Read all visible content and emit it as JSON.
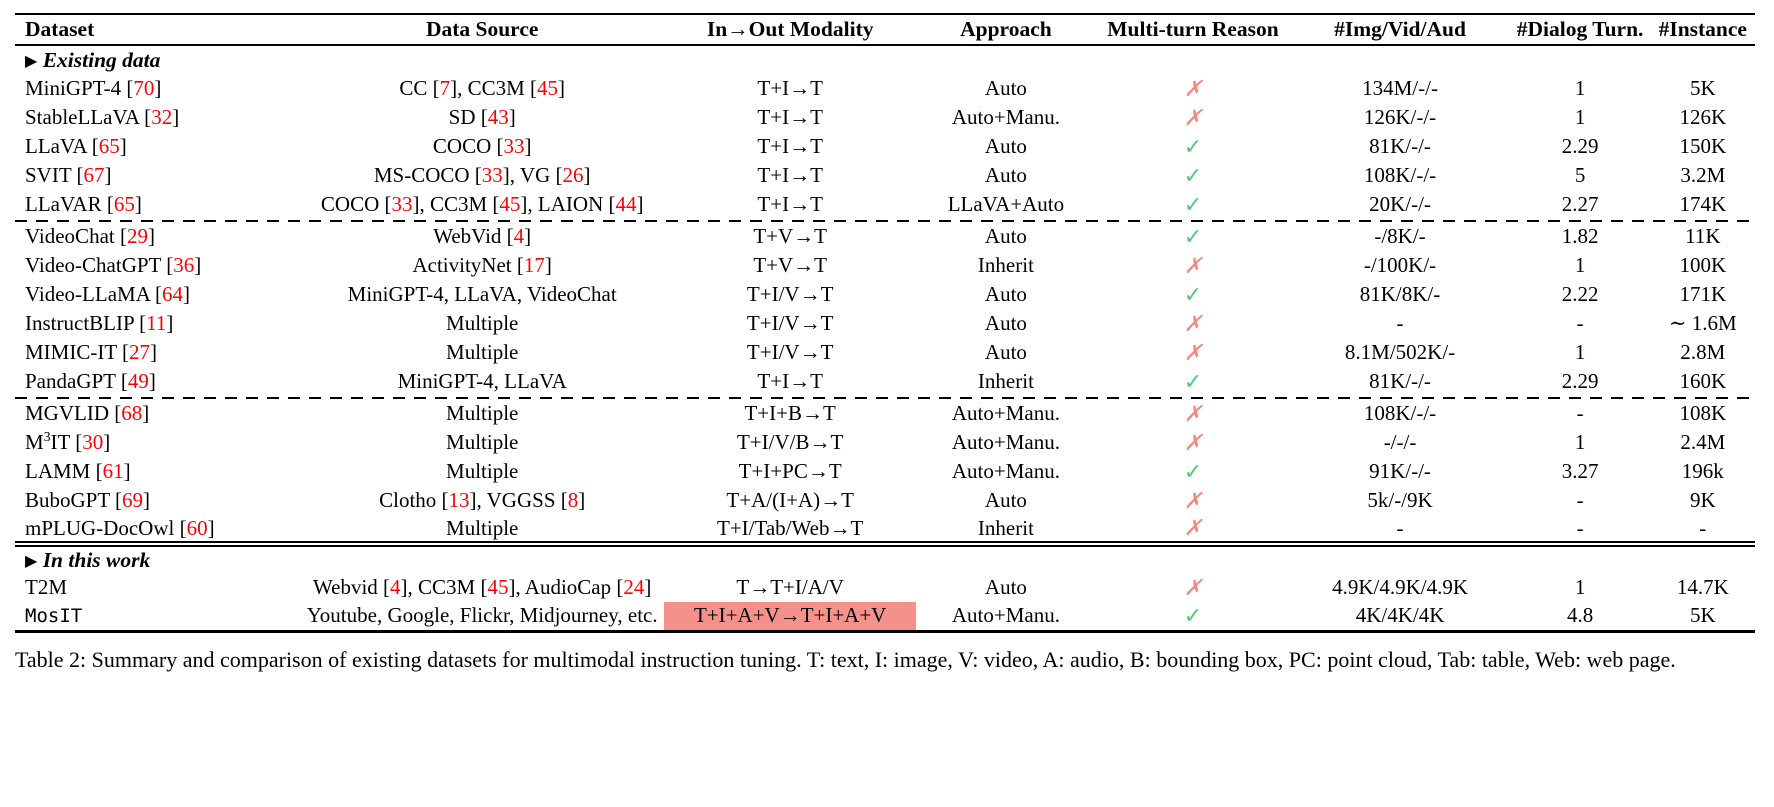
{
  "colors": {
    "cite": "#ff0000",
    "check": "#54c776",
    "cross": "#f48983",
    "hl": "#f4918a"
  },
  "icons": {
    "check": "✓",
    "cross": "✗",
    "section_marker": "▶"
  },
  "table": {
    "columns": [
      "Dataset",
      "Data Source",
      "In→Out Modality",
      "Approach",
      "Multi-turn Reason",
      "#Img/Vid/Aud",
      "#Dialog Turn.",
      "#Instance"
    ],
    "sections": [
      {
        "label": "Existing data",
        "rows": [
          {
            "dataset": "MiniGPT-4 [70]",
            "source": "CC [7], CC3M [45]",
            "modality": "T+I→T",
            "approach": "Auto",
            "multiturn": false,
            "img_vid_aud": "134M/-/-",
            "dialog_turn": "1",
            "instance": "5K"
          },
          {
            "dataset": "StableLLaVA [32]",
            "source": "SD [43]",
            "modality": "T+I→T",
            "approach": "Auto+Manu.",
            "multiturn": false,
            "img_vid_aud": "126K/-/-",
            "dialog_turn": "1",
            "instance": "126K"
          },
          {
            "dataset": "LLaVA [65]",
            "source": "COCO [33]",
            "modality": "T+I→T",
            "approach": "Auto",
            "multiturn": true,
            "img_vid_aud": "81K/-/-",
            "dialog_turn": "2.29",
            "instance": "150K"
          },
          {
            "dataset": "SVIT [67]",
            "source": "MS-COCO [33], VG [26]",
            "modality": "T+I→T",
            "approach": "Auto",
            "multiturn": true,
            "img_vid_aud": "108K/-/-",
            "dialog_turn": "5",
            "instance": "3.2M"
          },
          {
            "dataset": "LLaVAR [65]",
            "source": "COCO [33], CC3M [45], LAION [44]",
            "modality": "T+I→T",
            "approach": "LLaVA+Auto",
            "multiturn": true,
            "img_vid_aud": "20K/-/-",
            "dialog_turn": "2.27",
            "instance": "174K"
          },
          {
            "dash_before": true,
            "dataset": "VideoChat [29]",
            "source": "WebVid [4]",
            "modality": "T+V→T",
            "approach": "Auto",
            "multiturn": true,
            "img_vid_aud": "-/8K/-",
            "dialog_turn": "1.82",
            "instance": "11K"
          },
          {
            "dataset": "Video-ChatGPT [36]",
            "source": "ActivityNet [17]",
            "modality": "T+V→T",
            "approach": "Inherit",
            "multiturn": false,
            "img_vid_aud": "-/100K/-",
            "dialog_turn": "1",
            "instance": "100K"
          },
          {
            "dataset": "Video-LLaMA [64]",
            "source": "MiniGPT-4, LLaVA, VideoChat",
            "modality": "T+I/V→T",
            "approach": "Auto",
            "multiturn": true,
            "img_vid_aud": "81K/8K/-",
            "dialog_turn": "2.22",
            "instance": "171K"
          },
          {
            "dataset": "InstructBLIP [11]",
            "source": "Multiple",
            "modality": "T+I/V→T",
            "approach": "Auto",
            "multiturn": false,
            "img_vid_aud": "-",
            "dialog_turn": "-",
            "instance": "∼ 1.6M"
          },
          {
            "dataset": "MIMIC-IT [27]",
            "source": "Multiple",
            "modality": "T+I/V→T",
            "approach": "Auto",
            "multiturn": false,
            "img_vid_aud": "8.1M/502K/-",
            "dialog_turn": "1",
            "instance": "2.8M"
          },
          {
            "dataset": "PandaGPT [49]",
            "source": "MiniGPT-4, LLaVA",
            "modality": "T+I→T",
            "approach": "Inherit",
            "multiturn": true,
            "img_vid_aud": "81K/-/-",
            "dialog_turn": "2.29",
            "instance": "160K"
          },
          {
            "dash_before": true,
            "dataset": "MGVLID [68]",
            "source": "Multiple",
            "modality": "T+I+B→T",
            "approach": "Auto+Manu.",
            "multiturn": false,
            "img_vid_aud": "108K/-/-",
            "dialog_turn": "-",
            "instance": "108K"
          },
          {
            "dataset": "M^3IT [30]",
            "source": "Multiple",
            "modality": "T+I/V/B→T",
            "approach": "Auto+Manu.",
            "multiturn": false,
            "img_vid_aud": "-/-/-",
            "dialog_turn": "1",
            "instance": "2.4M"
          },
          {
            "dataset": "LAMM [61]",
            "source": "Multiple",
            "modality": "T+I+PC→T",
            "approach": "Auto+Manu.",
            "multiturn": true,
            "img_vid_aud": "91K/-/-",
            "dialog_turn": "3.27",
            "instance": "196k"
          },
          {
            "dataset": "BuboGPT [69]",
            "source": "Clotho [13], VGGSS [8]",
            "modality": "T+A/(I+A)→T",
            "approach": "Auto",
            "multiturn": false,
            "img_vid_aud": "5k/-/9K",
            "dialog_turn": "-",
            "instance": "9K"
          },
          {
            "dataset": "mPLUG-DocOwl [60]",
            "source": "Multiple",
            "modality": "T+I/Tab/Web→T",
            "approach": "Inherit",
            "multiturn": false,
            "img_vid_aud": "-",
            "dialog_turn": "-",
            "instance": "-"
          }
        ]
      },
      {
        "label": "In this work",
        "rows": [
          {
            "dataset": "T2M",
            "source": "Webvid [4], CC3M [45], AudioCap [24]",
            "modality": "T→T+I/A/V",
            "approach": "Auto",
            "multiturn": false,
            "img_vid_aud": "4.9K/4.9K/4.9K",
            "dialog_turn": "1",
            "instance": "14.7K"
          },
          {
            "dataset": "MosIT",
            "mono": true,
            "source": "Youtube, Google, Flickr, Midjourney, etc.",
            "modality": "T+I+A+V→T+I+A+V",
            "highlight": true,
            "approach": "Auto+Manu.",
            "multiturn": true,
            "img_vid_aud": "4K/4K/4K",
            "dialog_turn": "4.8",
            "instance": "5K"
          }
        ]
      }
    ]
  },
  "caption": "Table 2: Summary and comparison of existing datasets for multimodal instruction tuning. T: text, I: image, V: video, A: audio, B: bounding box, PC: point cloud, Tab: table, Web: web page."
}
